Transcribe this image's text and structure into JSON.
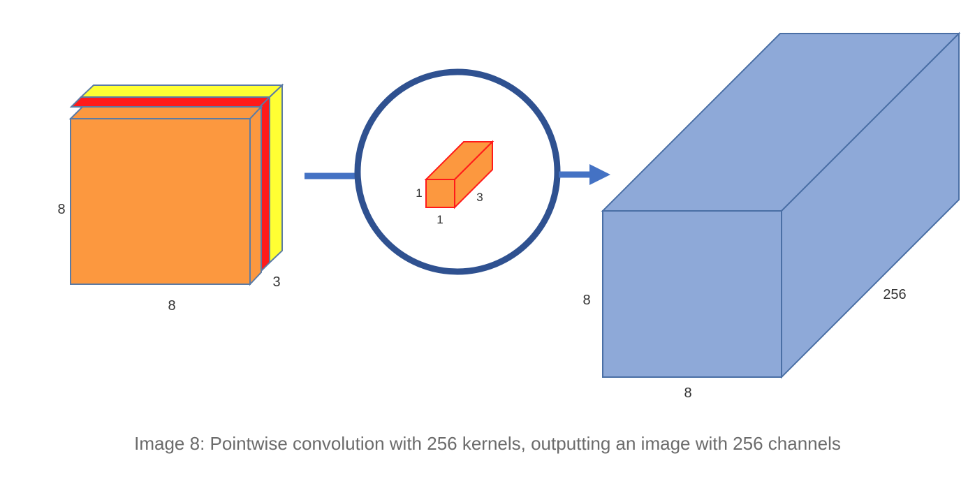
{
  "input_block": {
    "height_label": "8",
    "width_label": "8",
    "depth_label": "3",
    "colors": {
      "front": "#FC983F",
      "channel_2": "#FF1A1A",
      "channel_3": "#FFFF33",
      "edge": "#5B7BA5"
    }
  },
  "kernel": {
    "height_label": "1",
    "width_label": "1",
    "depth_label": "3",
    "colors": {
      "fill": "#FC983F",
      "edge": "#FF1A1A",
      "ring": "#2F5190"
    }
  },
  "output_block": {
    "height_label": "8",
    "width_label": "8",
    "depth_label": "256",
    "colors": {
      "fill": "#8EA9D8",
      "edge": "#4A6FA5"
    }
  },
  "arrow_color": "#4472C4",
  "caption": "Image 8: Pointwise convolution with 256 kernels, outputting an image with 256 channels"
}
